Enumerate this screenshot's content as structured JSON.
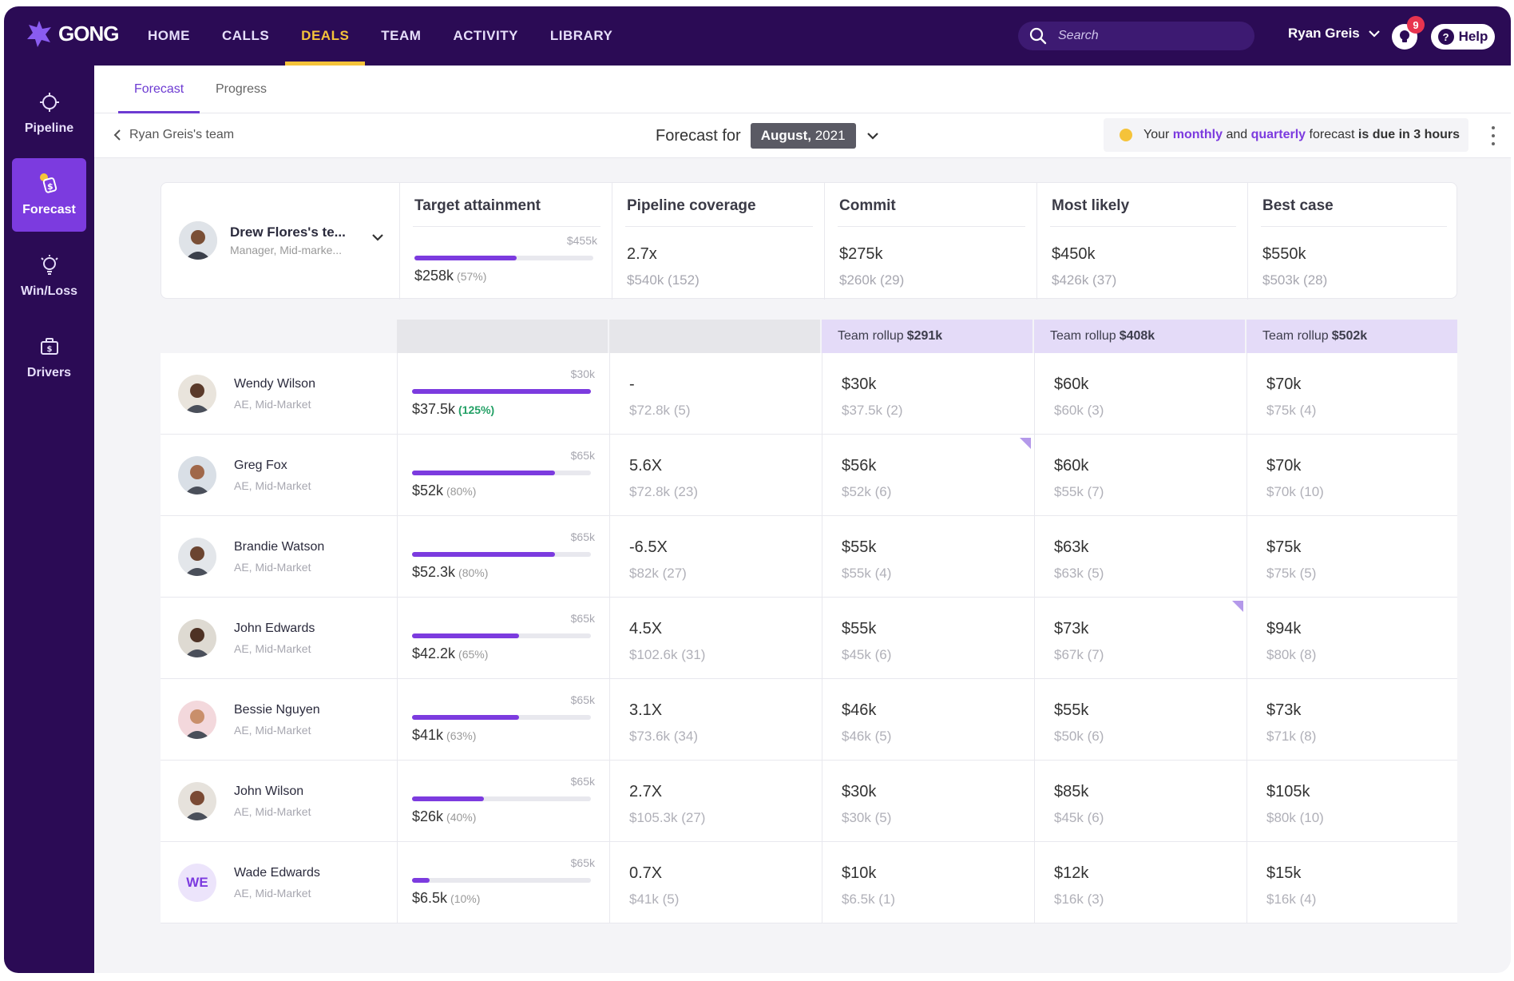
{
  "app": {
    "logo_text": "GONG",
    "nav": [
      {
        "label": "HOME"
      },
      {
        "label": "CALLS"
      },
      {
        "label": "DEALS",
        "active": true
      },
      {
        "label": "TEAM"
      },
      {
        "label": "ACTIVITY"
      },
      {
        "label": "LIBRARY"
      }
    ],
    "search_placeholder": "Search",
    "user_name": "Ryan Greis",
    "notification_count": "9",
    "help_label": "Help",
    "accent_color": "#7c3bdf",
    "nav_bg": "#2b0b55",
    "active_nav_color": "#f5c33a"
  },
  "sidebar": [
    {
      "label": "Pipeline",
      "icon": "crosshair-icon"
    },
    {
      "label": "Forecast",
      "icon": "forecast-dollar-icon",
      "active": true
    },
    {
      "label": "Win/Loss",
      "icon": "lightbulb-icon"
    },
    {
      "label": "Drivers",
      "icon": "briefcase-dollar-icon"
    }
  ],
  "tabs": [
    {
      "label": "Forecast",
      "active": true
    },
    {
      "label": "Progress"
    }
  ],
  "subbar": {
    "back_label": "Ryan Greis's team",
    "forecast_for_label": "Forecast for",
    "period_month": "August,",
    "period_year": "2021",
    "due_prefix": "Your",
    "due_monthly": "monthly",
    "due_and": "and",
    "due_quarterly": "quarterly",
    "due_mid": "forecast",
    "due_bold": "is due in 3 hours"
  },
  "columns": [
    "Target attainment",
    "Pipeline coverage",
    "Commit",
    "Most likely",
    "Best case"
  ],
  "manager": {
    "name": "Drew Flores's te...",
    "role": "Manager, Mid-marke...",
    "target": "$455k",
    "attainment": "$258k",
    "attainment_pct": "(57%)",
    "progress": 0.57,
    "coverage": "2.7x",
    "coverage_sub": "$540k (152)",
    "commit": "$275k",
    "commit_sub": "$260k (29)",
    "likely": "$450k",
    "likely_sub": "$426k (37)",
    "best": "$550k",
    "best_sub": "$503k (28)"
  },
  "rollups": {
    "prefix": "Team rollup",
    "commit": "$291k",
    "likely": "$408k",
    "best": "$502k"
  },
  "reps": [
    {
      "name": "Wendy Wilson",
      "role": "AE, Mid-Market",
      "target": "$30k",
      "attainment": "$37.5k",
      "pct": "(125%)",
      "progress": 1.0,
      "over": true,
      "coverage": "-",
      "coverage_sub": "$72.8k (5)",
      "commit": "$30k",
      "commit_sub": "$37.5k (2)",
      "likely": "$60k",
      "likely_sub": "$60k (3)",
      "best": "$70k",
      "best_sub": "$75k (4)"
    },
    {
      "name": "Greg Fox",
      "role": "AE, Mid-Market",
      "target": "$65k",
      "attainment": "$52k",
      "pct": "(80%)",
      "progress": 0.8,
      "coverage": "5.6X",
      "coverage_sub": "$72.8k (23)",
      "commit": "$56k",
      "commit_sub": "$52k (6)",
      "commit_flag": true,
      "likely": "$60k",
      "likely_sub": "$55k (7)",
      "best": "$70k",
      "best_sub": "$70k (10)"
    },
    {
      "name": "Brandie Watson",
      "role": "AE, Mid-Market",
      "target": "$65k",
      "attainment": "$52.3k",
      "pct": "(80%)",
      "progress": 0.8,
      "coverage": "-6.5X",
      "coverage_sub": "$82k (27)",
      "commit": "$55k",
      "commit_sub": "$55k (4)",
      "likely": "$63k",
      "likely_sub": "$63k (5)",
      "best": "$75k",
      "best_sub": "$75k (5)"
    },
    {
      "name": "John Edwards",
      "role": "AE, Mid-Market",
      "target": "$65k",
      "attainment": "$42.2k",
      "pct": "(65%)",
      "progress": 0.6,
      "coverage": "4.5X",
      "coverage_sub": "$102.6k (31)",
      "commit": "$55k",
      "commit_sub": "$45k (6)",
      "likely": "$73k",
      "likely_sub": "$67k (7)",
      "likely_flag": true,
      "best": "$94k",
      "best_sub": "$80k (8)"
    },
    {
      "name": "Bessie Nguyen",
      "role": "AE, Mid-Market",
      "target": "$65k",
      "attainment": "$41k",
      "pct": "(63%)",
      "progress": 0.6,
      "coverage": "3.1X",
      "coverage_sub": "$73.6k (34)",
      "commit": "$46k",
      "commit_sub": "$46k (5)",
      "likely": "$55k",
      "likely_sub": "$50k (6)",
      "best": "$73k",
      "best_sub": "$71k (8)"
    },
    {
      "name": "John Wilson",
      "role": "AE, Mid-Market",
      "target": "$65k",
      "attainment": "$26k",
      "pct": "(40%)",
      "progress": 0.4,
      "coverage": "2.7X",
      "coverage_sub": "$105.3k (27)",
      "commit": "$30k",
      "commit_sub": "$30k (5)",
      "likely": "$85k",
      "likely_sub": "$45k (6)",
      "best": "$105k",
      "best_sub": "$80k (10)"
    },
    {
      "name": "Wade Edwards",
      "role": "AE, Mid-Market",
      "initials": "WE",
      "target": "$65k",
      "attainment": "$6.5k",
      "pct": "(10%)",
      "progress": 0.1,
      "coverage": "0.7X",
      "coverage_sub": "$41k (5)",
      "commit": "$10k",
      "commit_sub": "$6.5k (1)",
      "likely": "$12k",
      "likely_sub": "$16k (3)",
      "best": "$15k",
      "best_sub": "$16k (4)"
    }
  ]
}
